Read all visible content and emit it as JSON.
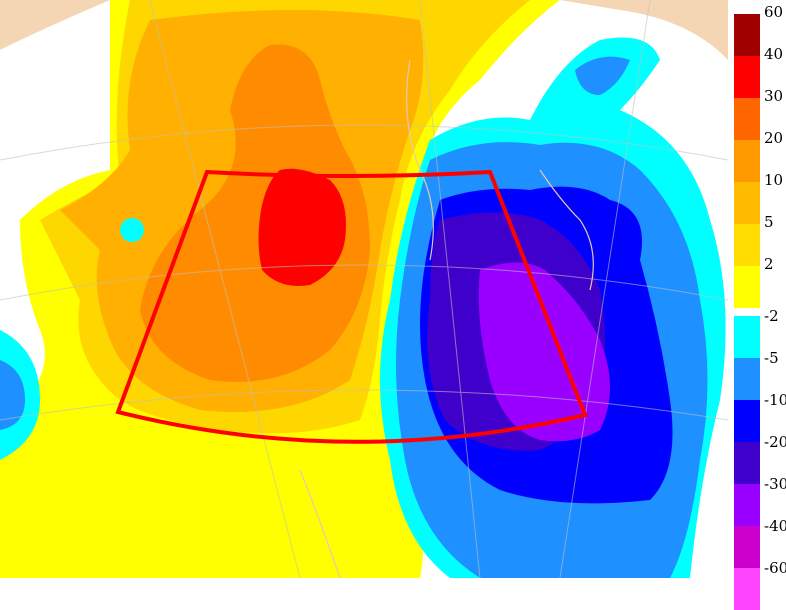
{
  "map": {
    "highlight_color": "#ff0000",
    "palette": {
      "land": "#f5d6b4",
      "neutral": "#ffffff",
      "plus_2": "#ffff00",
      "plus_5": "#ffd700",
      "plus_10": "#ffb000",
      "plus_20": "#ff8c00",
      "plus_30": "#ff6600",
      "plus_40": "#ff0000",
      "plus_60": "#a00000",
      "minus_2": "#00ffff",
      "minus_5": "#1e90ff",
      "minus_10": "#0000ff",
      "minus_20": "#4000cc",
      "minus_30": "#9900ff",
      "minus_40": "#cc00cc",
      "minus_60": "#ff66ff"
    }
  },
  "colorbar": {
    "positive": [
      {
        "label": "60",
        "color": "#a00000"
      },
      {
        "label": "40",
        "color": "#ff0000"
      },
      {
        "label": "30",
        "color": "#ff6600"
      },
      {
        "label": "20",
        "color": "#ff9900"
      },
      {
        "label": "10",
        "color": "#ffbb00"
      },
      {
        "label": "5",
        "color": "#ffdd00"
      },
      {
        "label": "2",
        "color": "#ffff00"
      }
    ],
    "negative": [
      {
        "label": "-2",
        "color": "#00ffff"
      },
      {
        "label": "-5",
        "color": "#1e90ff"
      },
      {
        "label": "-10",
        "color": "#0000ff"
      },
      {
        "label": "-20",
        "color": "#4000cc"
      },
      {
        "label": "-30",
        "color": "#9900ff"
      },
      {
        "label": "-40",
        "color": "#cc00cc"
      },
      {
        "label": "-60",
        "color": "#ff44ff"
      }
    ]
  }
}
